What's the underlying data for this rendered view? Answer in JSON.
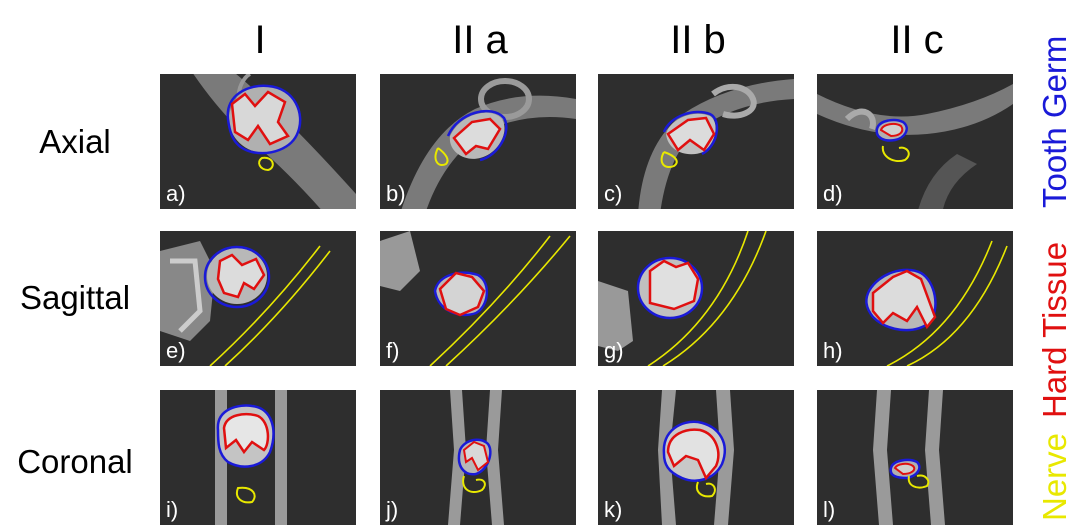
{
  "columns": [
    "I",
    "II a",
    "II b",
    "II c"
  ],
  "rows": [
    "Axial",
    "Sagittal",
    "Coronal"
  ],
  "panels": [
    "a)",
    "b)",
    "c)",
    "d)",
    "e)",
    "f)",
    "g)",
    "h)",
    "i)",
    "j)",
    "k)",
    "l)"
  ],
  "legend": [
    {
      "label": "Nerve",
      "color": "#e8e800"
    },
    {
      "label": "Hard Tissue",
      "color": "#e01010"
    },
    {
      "label": "Tooth Germ",
      "color": "#1a1ad8"
    }
  ],
  "colors": {
    "tooth_germ": "#1a1ad8",
    "hard_tissue": "#e01010",
    "nerve": "#e8e800"
  }
}
